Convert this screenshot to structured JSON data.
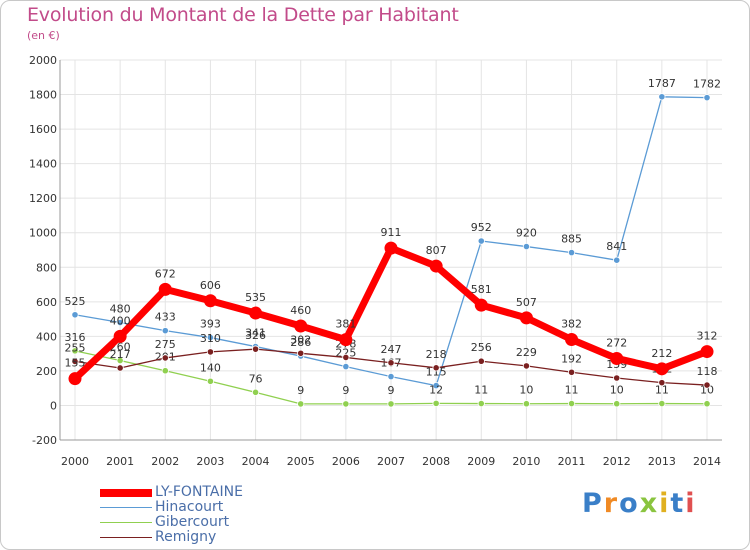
{
  "title": "Evolution du Montant de la Dette par Habitant",
  "subtitle": "(en €)",
  "logo_text": "Proxiti",
  "chart_data": {
    "type": "line",
    "x": [
      "2000",
      "2001",
      "2002",
      "2003",
      "2004",
      "2005",
      "2006",
      "2007",
      "2008",
      "2009",
      "2010",
      "2011",
      "2012",
      "2013",
      "2014"
    ],
    "ylim": [
      -200,
      2000
    ],
    "yticks": [
      "-200",
      "0",
      "200",
      "400",
      "600",
      "800",
      "1000",
      "1200",
      "1400",
      "1600",
      "1800",
      "2000"
    ],
    "grid": true,
    "legend_position": "bottom-left",
    "series": [
      {
        "name": "LY-FONTAINE",
        "color": "#ff0000",
        "values": [
          155,
          400,
          672,
          606,
          535,
          460,
          381,
          911,
          807,
          581,
          507,
          382,
          272,
          212,
          312
        ],
        "labels": [
          "155",
          "400",
          "672",
          "606",
          "535",
          "460",
          "381",
          "911",
          "807",
          "581",
          "507",
          "382",
          "272",
          "212",
          "312"
        ]
      },
      {
        "name": "Hinacourt",
        "color": "#5b9bd5",
        "values": [
          525,
          480,
          433,
          393,
          341,
          286,
          225,
          167,
          115,
          952,
          920,
          885,
          841,
          1787,
          1782
        ],
        "labels": [
          "525",
          "480",
          "433",
          "393",
          "341",
          "286",
          "225",
          "167",
          "115",
          "952",
          "920",
          "885",
          "841",
          "1787",
          "1782"
        ]
      },
      {
        "name": "Gibercourt",
        "color": "#90d050",
        "values": [
          316,
          260,
          201,
          140,
          76,
          9,
          9,
          9,
          12,
          11,
          10,
          11,
          10,
          11,
          10
        ],
        "labels": [
          "316",
          "260",
          "201",
          "140",
          "76",
          "9",
          "9",
          "9",
          "12",
          "11",
          "10",
          "11",
          "10",
          "11",
          "10"
        ]
      },
      {
        "name": "Remigny",
        "color": "#7a2020",
        "values": [
          255,
          217,
          275,
          310,
          326,
          302,
          278,
          247,
          218,
          256,
          229,
          192,
          159,
          132,
          118
        ],
        "labels": [
          "255",
          "217",
          "275",
          "310",
          "326",
          "302",
          "278",
          "247",
          "218",
          "256",
          "229",
          "192",
          "159",
          "132",
          "118"
        ]
      }
    ]
  }
}
